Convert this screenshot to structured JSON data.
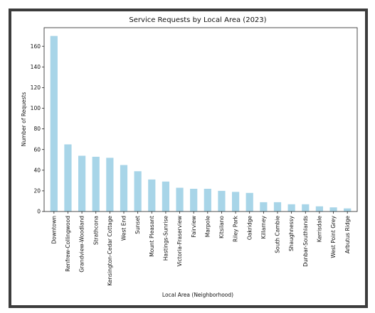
{
  "chart_data": {
    "type": "bar",
    "title": "Service Requests by Local Area (2023)",
    "xlabel": "Local Area (Neighborhood)",
    "ylabel": "Number of Requests",
    "ylim": [
      0,
      178
    ],
    "yticks": [
      0,
      20,
      40,
      60,
      80,
      100,
      120,
      140,
      160
    ],
    "grid": false,
    "bar_color": "#a8d5e8",
    "categories": [
      "Downtown",
      "Renfrew-Collingwood",
      "Grandview-Woodland",
      "Strathcona",
      "Kensington-Cedar Cottage",
      "West End",
      "Sunset",
      "Mount Pleasant",
      "Hastings-Sunrise",
      "Victoria-Fraserview",
      "Fairview",
      "Marpole",
      "Kitsilano",
      "Riley Park",
      "Oakridge",
      "Killarney",
      "South Cambie",
      "Shaughnessy",
      "Dunbar-Southlands",
      "Kerrisdale",
      "West Point Grey",
      "Arbutus Ridge"
    ],
    "values": [
      170,
      65,
      54,
      53,
      52,
      45,
      39,
      31,
      29,
      23,
      22,
      22,
      20,
      19,
      18,
      9,
      9,
      7,
      7,
      5,
      4,
      3
    ]
  }
}
